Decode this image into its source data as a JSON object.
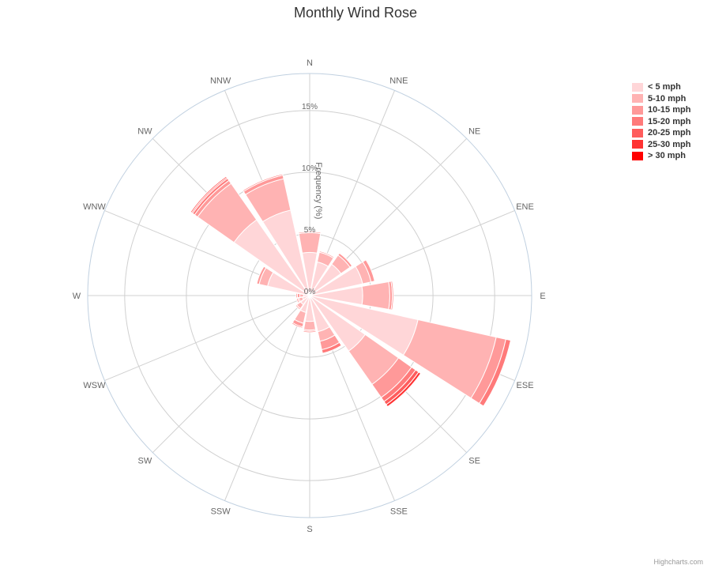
{
  "chart_data": {
    "type": "polar-stacked-column",
    "title": "Monthly Wind Rose",
    "ylabel": "Frequency (%)",
    "ylim": [
      0,
      18
    ],
    "y_ticks": [
      "0%",
      "5%",
      "10%",
      "15%"
    ],
    "y_tick_values": [
      0,
      5,
      10,
      15
    ],
    "categories": [
      "N",
      "NNE",
      "NE",
      "ENE",
      "E",
      "ESE",
      "SE",
      "SSE",
      "S",
      "SSW",
      "SW",
      "WSW",
      "W",
      "WNW",
      "NW",
      "NNW"
    ],
    "series": [
      {
        "name": "< 5 mph",
        "color": "#ffd6d8",
        "values": [
          3.5,
          2.8,
          3.1,
          4.4,
          4.3,
          9.0,
          5.5,
          3.0,
          2.1,
          1.4,
          0.9,
          0.6,
          0.5,
          3.5,
          7.5,
          7.1
        ]
      },
      {
        "name": "5-10 mph",
        "color": "#ffb3b3",
        "values": [
          1.6,
          0.8,
          0.9,
          0.7,
          2.2,
          6.5,
          3.3,
          0.8,
          0.7,
          0.9,
          0.4,
          0.3,
          0.3,
          0.7,
          3.6,
          2.6
        ]
      },
      {
        "name": "10-15 mph",
        "color": "#ff9999",
        "values": [
          0.1,
          0.1,
          0.2,
          0.3,
          0.2,
          0.8,
          1.3,
          0.7,
          0.1,
          0.3,
          0.0,
          0.1,
          0.2,
          0.2,
          0.3,
          0.3
        ]
      },
      {
        "name": "15-20 mph",
        "color": "#ff7a7a",
        "values": [
          0.0,
          0.0,
          0.0,
          0.0,
          0.1,
          0.4,
          0.4,
          0.3,
          0.1,
          0.1,
          0.1,
          0.1,
          0.1,
          0.0,
          0.2,
          0.1
        ]
      },
      {
        "name": "20-25 mph",
        "color": "#ff5c5c",
        "values": [
          0.0,
          0.0,
          0.0,
          0.0,
          0.0,
          0.0,
          0.3,
          0.0,
          0.0,
          0.0,
          0.0,
          0.0,
          0.0,
          0.0,
          0.1,
          0.0
        ]
      },
      {
        "name": "25-30 mph",
        "color": "#ff3333",
        "values": [
          0.0,
          0.0,
          0.0,
          0.0,
          0.0,
          0.0,
          0.2,
          0.0,
          0.0,
          0.0,
          0.0,
          0.0,
          0.0,
          0.0,
          0.1,
          0.0
        ]
      },
      {
        "name": "> 30 mph",
        "color": "#ff0000",
        "values": [
          0.0,
          0.0,
          0.0,
          0.0,
          0.0,
          0.0,
          0.0,
          0.0,
          0.0,
          0.0,
          0.0,
          0.0,
          0.0,
          0.0,
          0.0,
          0.0
        ]
      }
    ],
    "legend_placement": "top-right",
    "grid": true
  },
  "credits": "Highcharts.com"
}
